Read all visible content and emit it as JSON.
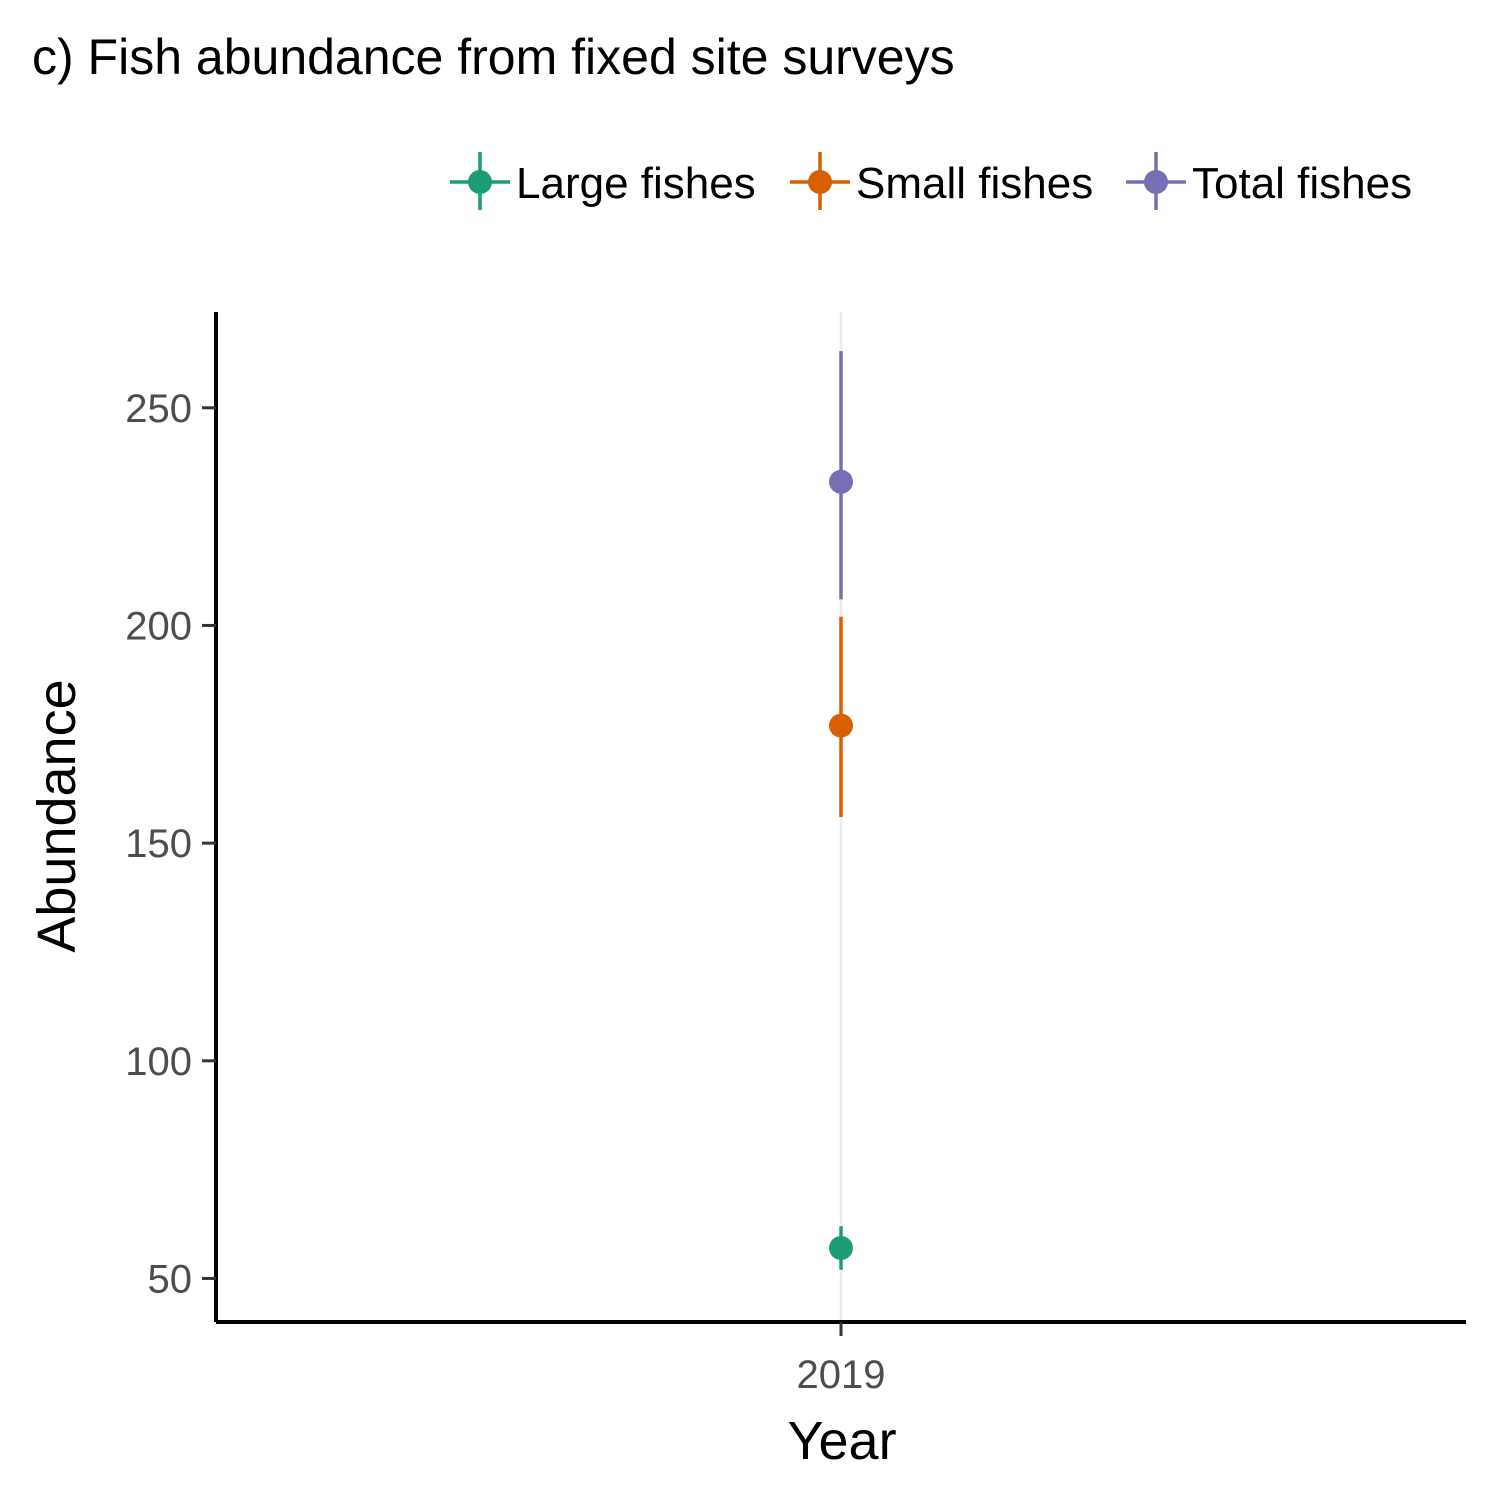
{
  "chart_data": {
    "type": "scatter",
    "title": "c) Fish abundance from fixed site surveys",
    "xlabel": "Year",
    "ylabel": "Abundance",
    "categories": [
      "2019"
    ],
    "ylim": [
      40,
      272
    ],
    "yticks": [
      50,
      100,
      150,
      200,
      250
    ],
    "legend_position": "top-right",
    "grid": "x-major-only",
    "series": [
      {
        "name": "Large fishes",
        "color": "#1b9e77",
        "values": [
          57
        ],
        "lower": [
          52
        ],
        "upper": [
          62
        ]
      },
      {
        "name": "Small fishes",
        "color": "#d95f02",
        "values": [
          177
        ],
        "lower": [
          156
        ],
        "upper": [
          202
        ]
      },
      {
        "name": "Total fishes",
        "color": "#7570b3",
        "values": [
          233
        ],
        "lower": [
          206
        ],
        "upper": [
          263
        ]
      }
    ]
  }
}
